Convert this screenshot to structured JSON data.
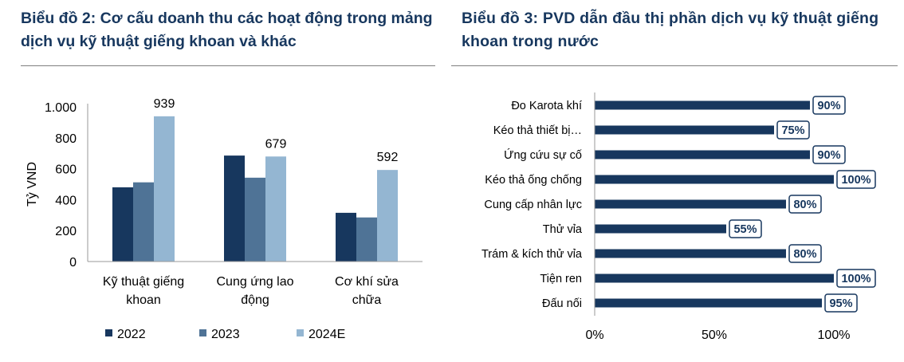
{
  "left_panel": {
    "title": "Biểu đồ 2: Cơ cấu doanh thu các hoạt động trong mảng dịch vụ kỹ thuật giếng khoan và khác"
  },
  "right_panel": {
    "title": "Biểu đồ 3: PVD dẫn đầu thị phần dịch vụ kỹ thuật giếng khoan trong nước"
  },
  "chart_data": [
    {
      "type": "bar",
      "orientation": "vertical",
      "ylabel": "Tỷ VND",
      "ylim": [
        0,
        1000
      ],
      "yticks": [
        0,
        200,
        400,
        600,
        800,
        1000
      ],
      "ytick_labels": [
        "0",
        "200",
        "400",
        "600",
        "800",
        "1.000"
      ],
      "categories": [
        [
          "Kỹ thuật giếng",
          "khoan"
        ],
        [
          "Cung ứng lao",
          "động"
        ],
        [
          "Cơ khí sửa",
          "chữa"
        ]
      ],
      "series": [
        {
          "name": "2022",
          "color": "#17375e",
          "values": [
            480,
            685,
            315
          ]
        },
        {
          "name": "2023",
          "color": "#4f7396",
          "values": [
            512,
            542,
            285
          ]
        },
        {
          "name": "2024E",
          "color": "#94b6d2",
          "values": [
            939,
            679,
            592
          ],
          "labels": [
            "939",
            "679",
            "592"
          ]
        }
      ],
      "legend": "bottom"
    },
    {
      "type": "bar",
      "orientation": "horizontal",
      "xlim": [
        0,
        100
      ],
      "xtick_labels": [
        "0%",
        "50%",
        "100%"
      ],
      "xticks": [
        0,
        50,
        100
      ],
      "color": "#17375e",
      "categories": [
        "Đo Karota khí",
        "Kéo thả thiết bị…",
        "Ứng cứu sự cố",
        "Kéo thả ống chống",
        "Cung cấp nhân lực",
        "Thử vỉa",
        "Trám & kích thử vỉa",
        "Tiện ren",
        "Đấu nối"
      ],
      "values": [
        90,
        75,
        90,
        100,
        80,
        55,
        80,
        100,
        95
      ],
      "labels": [
        "90%",
        "75%",
        "90%",
        "100%",
        "80%",
        "55%",
        "80%",
        "100%",
        "95%"
      ]
    }
  ]
}
